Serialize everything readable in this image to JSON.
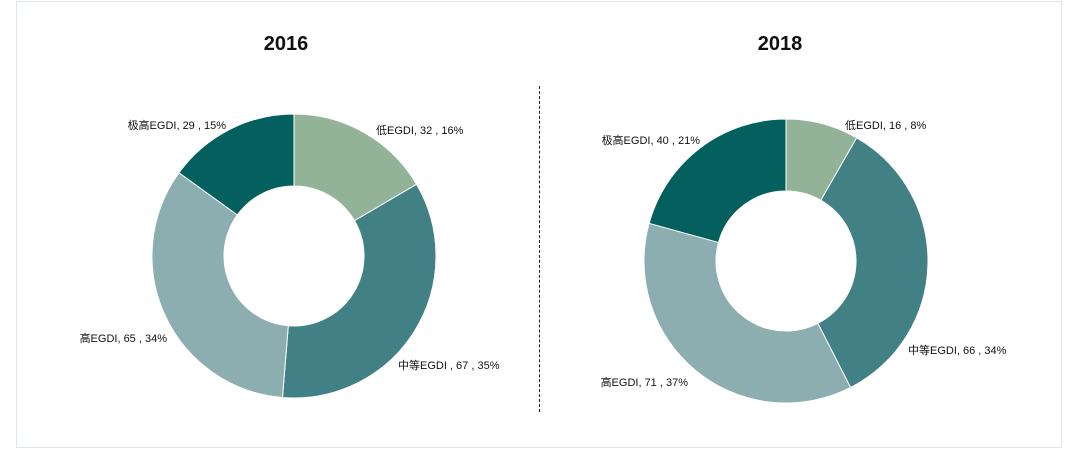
{
  "chart_data": [
    {
      "type": "pie",
      "title": "2016",
      "categories": [
        "低EGDI",
        "中等EGDI",
        "高EGDI",
        "极高EGDI"
      ],
      "values": [
        32,
        67,
        65,
        29
      ],
      "percentages": [
        "16%",
        "35%",
        "34%",
        "15%"
      ],
      "labels": [
        "低EGDI, 32 , 16%",
        "中等EGDI , 67 , 35%",
        "高EGDI, 65 , 34%",
        "极高EGDI, 29 , 15%"
      ],
      "colors": [
        "#93b398",
        "#418085",
        "#8caeb0",
        "#04605e"
      ]
    },
    {
      "type": "pie",
      "title": "2018",
      "categories": [
        "低EGDI",
        "中等EGDI",
        "高EGDI",
        "极高EGDI"
      ],
      "values": [
        16,
        66,
        71,
        40
      ],
      "percentages": [
        "8%",
        "34%",
        "37%",
        "21%"
      ],
      "labels": [
        "低EGDI, 16 , 8%",
        "中等EGDI, 66 , 34%",
        "高EGDI, 71 , 37%",
        "极高EGDI, 40 , 21%"
      ],
      "colors": [
        "#93b398",
        "#418085",
        "#8caeb0",
        "#04605e"
      ]
    }
  ]
}
